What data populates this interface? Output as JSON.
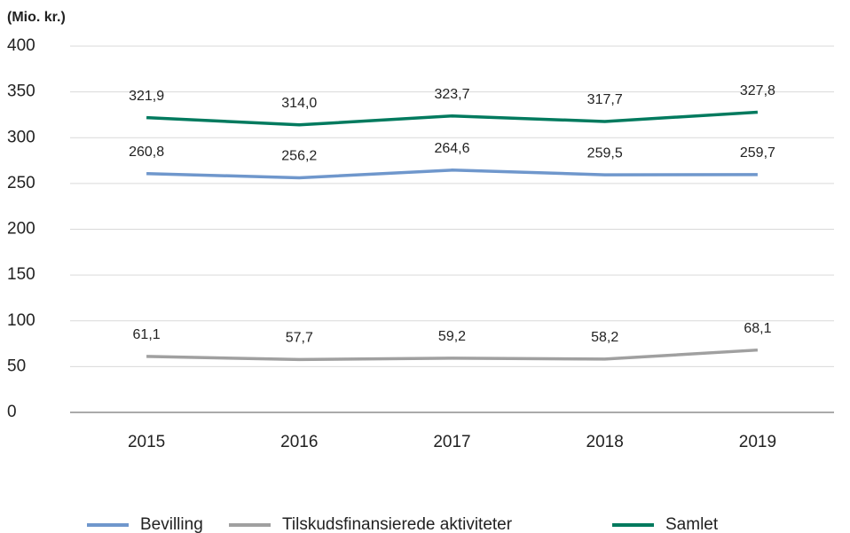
{
  "chart_data": {
    "type": "line",
    "y_axis_label": "(Mio. kr.)",
    "categories": [
      "2015",
      "2016",
      "2017",
      "2018",
      "2019"
    ],
    "series": [
      {
        "name": "Bevilling",
        "color": "#6f97cc",
        "values": [
          260.8,
          256.2,
          264.6,
          259.5,
          259.7
        ],
        "value_labels": [
          "260,8",
          "256,2",
          "264,6",
          "259,5",
          "259,7"
        ]
      },
      {
        "name": "Tilskudsfinansierede aktiviteter",
        "color": "#a0a0a0",
        "values": [
          61.1,
          57.7,
          59.2,
          58.2,
          68.1
        ],
        "value_labels": [
          "61,1",
          "57,7",
          "59,2",
          "58,2",
          "68,1"
        ]
      },
      {
        "name": "Samlet",
        "color": "#007a5e",
        "values": [
          321.9,
          314.0,
          323.7,
          317.7,
          327.8
        ],
        "value_labels": [
          "321,9",
          "314,0",
          "323,7",
          "317,7",
          "327,8"
        ]
      }
    ],
    "ylim": [
      0,
      400
    ],
    "yticks": [
      0,
      50,
      100,
      150,
      200,
      250,
      300,
      350,
      400
    ],
    "grid": true,
    "legend": "bottom"
  }
}
